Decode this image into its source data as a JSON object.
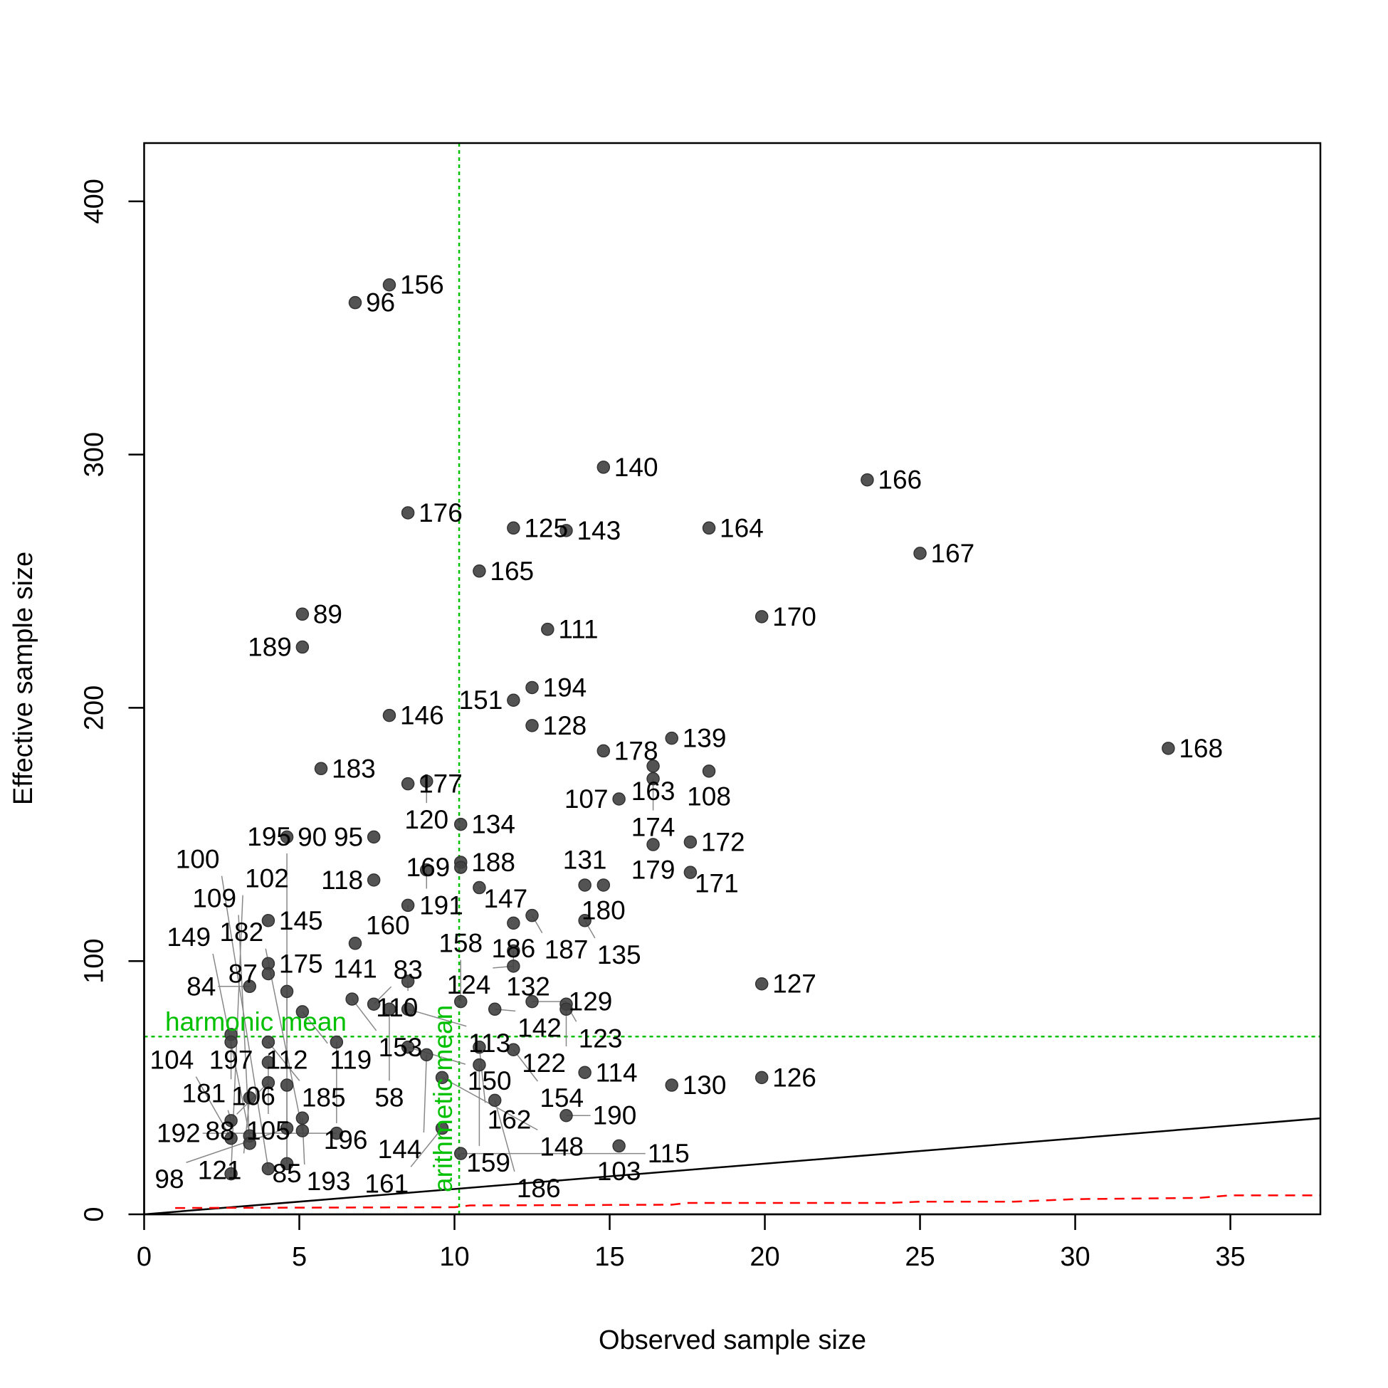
{
  "chart_data": {
    "type": "scatter",
    "title": "",
    "xlabel": "Observed sample size",
    "ylabel": "Effective sample size",
    "xlim": [
      0,
      37.9
    ],
    "ylim": [
      0,
      423
    ],
    "xticks": [
      0,
      5,
      10,
      15,
      20,
      25,
      30,
      35
    ],
    "yticks": [
      0,
      100,
      200,
      300,
      400
    ],
    "grid": false,
    "point_color": "#404040",
    "points": [
      {
        "label": "156",
        "x": 7.9,
        "y": 367
      },
      {
        "label": "96",
        "x": 6.8,
        "y": 360
      },
      {
        "label": "140",
        "x": 14.8,
        "y": 295
      },
      {
        "label": "166",
        "x": 23.3,
        "y": 290
      },
      {
        "label": "176",
        "x": 8.5,
        "y": 277
      },
      {
        "label": "125",
        "x": 11.9,
        "y": 271
      },
      {
        "label": "143",
        "x": 13.6,
        "y": 270
      },
      {
        "label": "164",
        "x": 18.2,
        "y": 271
      },
      {
        "label": "167",
        "x": 25.0,
        "y": 261
      },
      {
        "label": "165",
        "x": 10.8,
        "y": 254
      },
      {
        "label": "89",
        "x": 5.1,
        "y": 237
      },
      {
        "label": "170",
        "x": 19.9,
        "y": 236
      },
      {
        "label": "111",
        "x": 13.0,
        "y": 231
      },
      {
        "label": "189",
        "x": 5.1,
        "y": 224
      },
      {
        "label": "194",
        "x": 12.5,
        "y": 208
      },
      {
        "label": "151",
        "x": 11.9,
        "y": 203
      },
      {
        "label": "146",
        "x": 7.9,
        "y": 197
      },
      {
        "label": "128",
        "x": 12.5,
        "y": 193
      },
      {
        "label": "139",
        "x": 17.0,
        "y": 188
      },
      {
        "label": "168",
        "x": 33.0,
        "y": 184
      },
      {
        "label": "178",
        "x": 14.8,
        "y": 183
      },
      {
        "label": "163",
        "x": 16.4,
        "y": 177
      },
      {
        "label": "108",
        "x": 18.2,
        "y": 175
      },
      {
        "label": "174",
        "x": 16.4,
        "y": 172
      },
      {
        "label": "183",
        "x": 5.7,
        "y": 176
      },
      {
        "label": "177",
        "x": 8.5,
        "y": 170
      },
      {
        "label": "120",
        "x": 9.1,
        "y": 171
      },
      {
        "label": "107",
        "x": 15.3,
        "y": 164
      },
      {
        "label": "134",
        "x": 10.2,
        "y": 154
      },
      {
        "label": "90",
        "x": 4.6,
        "y": 149
      },
      {
        "label": "95",
        "x": 7.4,
        "y": 149
      },
      {
        "label": "179",
        "x": 16.4,
        "y": 146
      },
      {
        "label": "172",
        "x": 17.6,
        "y": 147
      },
      {
        "label": "171",
        "x": 17.6,
        "y": 135
      },
      {
        "label": "188",
        "x": 10.2,
        "y": 139
      },
      {
        "label": "169",
        "x": 10.2,
        "y": 137
      },
      {
        "label": "191",
        "x": 9.1,
        "y": 136
      },
      {
        "label": "118",
        "x": 7.4,
        "y": 132
      },
      {
        "label": "147",
        "x": 10.8,
        "y": 129
      },
      {
        "label": "131",
        "x": 14.2,
        "y": 130
      },
      {
        "label": "180",
        "x": 14.8,
        "y": 130
      },
      {
        "label": "160",
        "x": 8.5,
        "y": 122
      },
      {
        "label": "145",
        "x": 4.0,
        "y": 116
      },
      {
        "label": "186",
        "x": 11.9,
        "y": 115
      },
      {
        "label": "187",
        "x": 12.5,
        "y": 118
      },
      {
        "label": "135",
        "x": 14.2,
        "y": 116
      },
      {
        "label": "141",
        "x": 6.8,
        "y": 107
      },
      {
        "label": "132",
        "x": 11.9,
        "y": 104
      },
      {
        "label": "124",
        "x": 11.9,
        "y": 98
      },
      {
        "label": "175",
        "x": 4.0,
        "y": 99
      },
      {
        "label": "87",
        "x": 4.0,
        "y": 95
      },
      {
        "label": "84",
        "x": 3.4,
        "y": 90
      },
      {
        "label": "112",
        "x": 4.6,
        "y": 88
      },
      {
        "label": "110",
        "x": 8.5,
        "y": 92
      },
      {
        "label": "127",
        "x": 19.9,
        "y": 91
      },
      {
        "label": "119",
        "x": 5.1,
        "y": 80
      },
      {
        "label": "153",
        "x": 6.7,
        "y": 85
      },
      {
        "label": "83",
        "x": 7.4,
        "y": 83
      },
      {
        "label": "58",
        "x": 7.9,
        "y": 81
      },
      {
        "label": "113",
        "x": 8.5,
        "y": 81
      },
      {
        "label": "158",
        "x": 10.2,
        "y": 84
      },
      {
        "label": "142",
        "x": 11.3,
        "y": 81
      },
      {
        "label": "129",
        "x": 12.5,
        "y": 84
      },
      {
        "label": "123",
        "x": 13.6,
        "y": 83
      },
      {
        "label": "122",
        "x": 13.6,
        "y": 81
      },
      {
        "label": "197",
        "x": 2.8,
        "y": 71
      },
      {
        "label": "106",
        "x": 2.8,
        "y": 68
      },
      {
        "label": "185",
        "x": 4.0,
        "y": 68
      },
      {
        "label": "196",
        "x": 6.2,
        "y": 68
      },
      {
        "label": "150",
        "x": 8.5,
        "y": 66
      },
      {
        "label": "162",
        "x": 10.8,
        "y": 66
      },
      {
        "label": "154",
        "x": 11.9,
        "y": 65
      },
      {
        "label": "144",
        "x": 9.1,
        "y": 63
      },
      {
        "label": "159",
        "x": 10.8,
        "y": 59
      },
      {
        "label": "105",
        "x": 4.0,
        "y": 60
      },
      {
        "label": "114",
        "x": 14.2,
        "y": 56
      },
      {
        "label": "148",
        "x": 9.6,
        "y": 54
      },
      {
        "label": "126",
        "x": 19.9,
        "y": 54
      },
      {
        "label": "130",
        "x": 17.0,
        "y": 51
      },
      {
        "label": "88",
        "x": 4.0,
        "y": 52
      },
      {
        "label": "85",
        "x": 4.6,
        "y": 51
      },
      {
        "label": "121",
        "x": 3.4,
        "y": 46
      },
      {
        "label": "186b",
        "x": 11.3,
        "y": 45
      },
      {
        "label": "190",
        "x": 13.6,
        "y": 39
      },
      {
        "label": "181",
        "x": 2.8,
        "y": 37
      },
      {
        "label": "193",
        "x": 5.1,
        "y": 38
      },
      {
        "label": "161",
        "x": 9.6,
        "y": 34
      },
      {
        "label": "192",
        "x": 6.2,
        "y": 32
      },
      {
        "label": "182",
        "x": 5.1,
        "y": 33
      },
      {
        "label": "98",
        "x": 4.6,
        "y": 34
      },
      {
        "label": "104",
        "x": 2.8,
        "y": 30
      },
      {
        "label": "149",
        "x": 3.4,
        "y": 31
      },
      {
        "label": "109",
        "x": 3.4,
        "y": 28
      },
      {
        "label": "103",
        "x": 15.3,
        "y": 27
      },
      {
        "label": "115",
        "x": 10.2,
        "y": 24
      },
      {
        "label": "102",
        "x": 2.8,
        "y": 16
      },
      {
        "label": "100",
        "x": 4.0,
        "y": 18
      },
      {
        "label": "195",
        "x": 4.6,
        "y": 20
      }
    ],
    "reference_lines": {
      "identity": {
        "name": "y = x",
        "color": "#000000",
        "x": [
          0,
          37.9
        ],
        "y": [
          0,
          37.9
        ]
      },
      "lower": {
        "name": "lower bound",
        "color": "#ff0000",
        "style": "dashed",
        "x": [
          1,
          10,
          10.5,
          17,
          17.5,
          24,
          25,
          28,
          30,
          34,
          35,
          37.9
        ],
        "y": [
          2.5,
          2.8,
          3.5,
          3.8,
          4.5,
          4.5,
          5,
          5,
          6,
          6.5,
          7.5,
          7.5
        ]
      },
      "harmonic_mean": {
        "label": "harmonic mean",
        "color": "#00c000",
        "y": 70.2
      },
      "arithmetic_mean": {
        "label": "arithmetic mean",
        "color": "#00c000",
        "x": 10.15
      }
    }
  }
}
